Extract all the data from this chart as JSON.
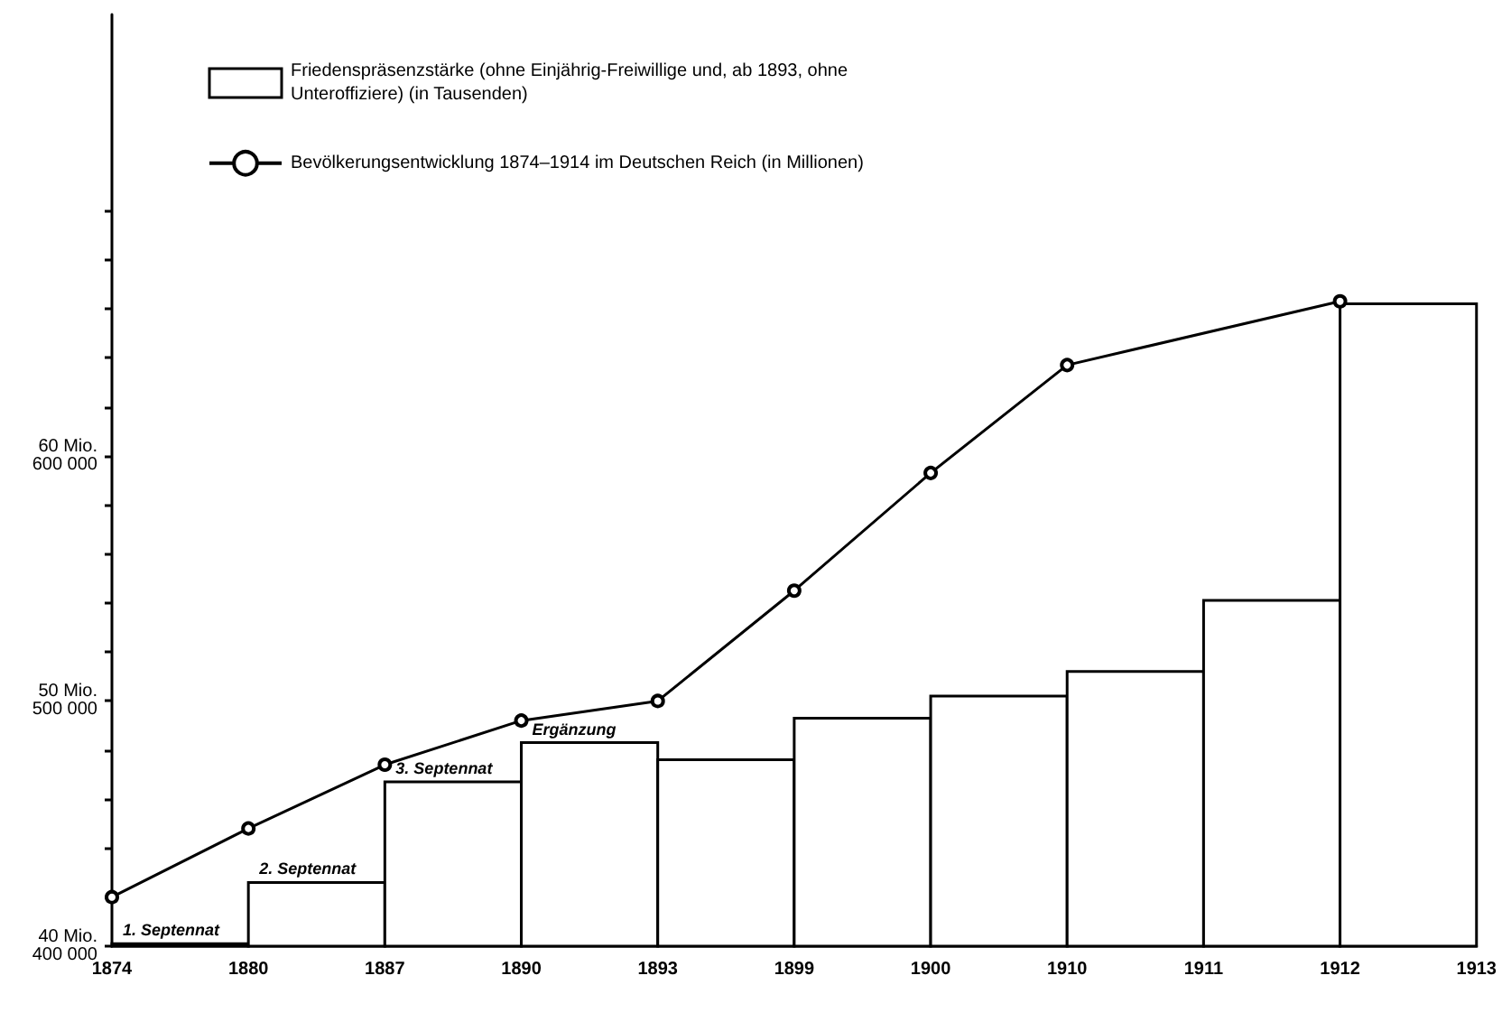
{
  "chart_data": {
    "type": "bar",
    "categories": [
      "1874",
      "1880",
      "1887",
      "1890",
      "1893",
      "1899",
      "1900",
      "1910",
      "1911",
      "1912",
      "1913"
    ],
    "series": [
      {
        "name": "Friedenspräsenzstärke (ohne Einjährig-Freiwillige und, ab 1893, ohne Unteroffiziere) (in Tausenden)",
        "color": "#000000",
        "values": [
          401000,
          426000,
          467000,
          483000,
          476000,
          493000,
          502000,
          512000,
          541000,
          662000,
          null
        ]
      },
      {
        "name": "Bevölkerungsentwicklung 1874–1914 im Deutschen Reich (in Millionen)",
        "type": "line",
        "axis": "y2",
        "color": "#000000",
        "values": [
          42.0,
          44.8,
          47.4,
          49.2,
          50.0,
          54.5,
          59.3,
          63.7,
          null,
          66.3,
          null
        ]
      }
    ],
    "ylim": [
      400000,
      780000
    ],
    "yticks": [
      {
        "value": 400000,
        "label": "400 000"
      },
      {
        "value": 420000,
        "label": null
      },
      {
        "value": 440000,
        "label": null
      },
      {
        "value": 460000,
        "label": null
      },
      {
        "value": 480000,
        "label": null
      },
      {
        "value": 500000,
        "label": "500 000"
      },
      {
        "value": 520000,
        "label": null
      },
      {
        "value": 540000,
        "label": null
      },
      {
        "value": 560000,
        "label": null
      },
      {
        "value": 580000,
        "label": null
      },
      {
        "value": 600000,
        "label": "600 000"
      },
      {
        "value": 620000,
        "label": null
      },
      {
        "value": 640000,
        "label": null
      },
      {
        "value": 660000,
        "label": null
      },
      {
        "value": 680000,
        "label": null
      },
      {
        "value": 700000,
        "label": null
      }
    ],
    "y2lim": [
      40,
      78
    ],
    "y2ticks": [
      {
        "value": 40,
        "label": "40 Mio."
      },
      {
        "value": 50,
        "label": "50 Mio."
      },
      {
        "value": 60,
        "label": "60 Mio."
      }
    ],
    "annotations": [
      {
        "text": "1. Septennat",
        "x": "1874",
        "y": 401000
      },
      {
        "text": "2. Septennat",
        "x": "1880",
        "y": 426000
      },
      {
        "text": "3. Septennat",
        "x": "1887",
        "y": 467000
      },
      {
        "text": "Ergänzung",
        "x": "1890",
        "y": 483000
      }
    ],
    "grid": false,
    "legend": "top left",
    "marker": "circle",
    "line_style": "solid"
  }
}
